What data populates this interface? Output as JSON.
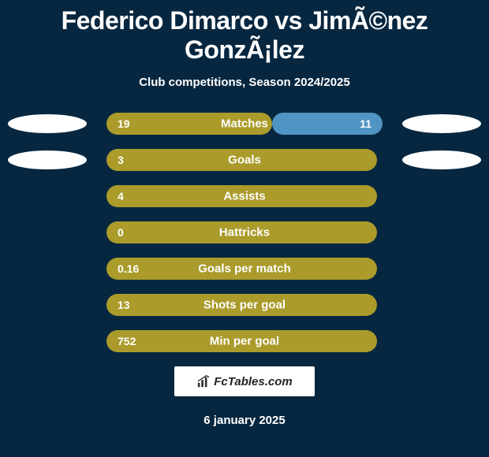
{
  "title": "Federico Dimarco vs JimÃ©nez GonzÃ¡lez",
  "subtitle": "Club competitions, Season 2024/2025",
  "date": "6 january 2025",
  "logo_text": "FcTables.com",
  "colors": {
    "bg": "#072740",
    "left_bar": "#aa9b2b",
    "right_bar": "#4f94c3",
    "ellipse_left1": "#ffffff",
    "ellipse_left2": "#ffffff",
    "ellipse_right1": "#ffffff",
    "ellipse_right2": "#ffffff"
  },
  "chart": {
    "bar_container_width": 350,
    "rows": [
      {
        "label": "Matches",
        "left_val": "19",
        "right_val": "11",
        "left_width_pct": 60,
        "right_width_pct": 40,
        "show_ellipses": true,
        "ellipse_left_color": "#ffffff",
        "ellipse_right_color": "#ffffff"
      },
      {
        "label": "Goals",
        "left_val": "3",
        "right_val": "",
        "left_width_pct": 98,
        "right_width_pct": 0,
        "show_ellipses": true,
        "ellipse_left_color": "#ffffff",
        "ellipse_right_color": "#ffffff"
      },
      {
        "label": "Assists",
        "left_val": "4",
        "right_val": "",
        "left_width_pct": 98,
        "right_width_pct": 0,
        "show_ellipses": false
      },
      {
        "label": "Hattricks",
        "left_val": "0",
        "right_val": "",
        "left_width_pct": 98,
        "right_width_pct": 0,
        "show_ellipses": false
      },
      {
        "label": "Goals per match",
        "left_val": "0.16",
        "right_val": "",
        "left_width_pct": 98,
        "right_width_pct": 0,
        "show_ellipses": false
      },
      {
        "label": "Shots per goal",
        "left_val": "13",
        "right_val": "",
        "left_width_pct": 98,
        "right_width_pct": 0,
        "show_ellipses": false
      },
      {
        "label": "Min per goal",
        "left_val": "752",
        "right_val": "",
        "left_width_pct": 98,
        "right_width_pct": 0,
        "show_ellipses": false
      }
    ]
  }
}
